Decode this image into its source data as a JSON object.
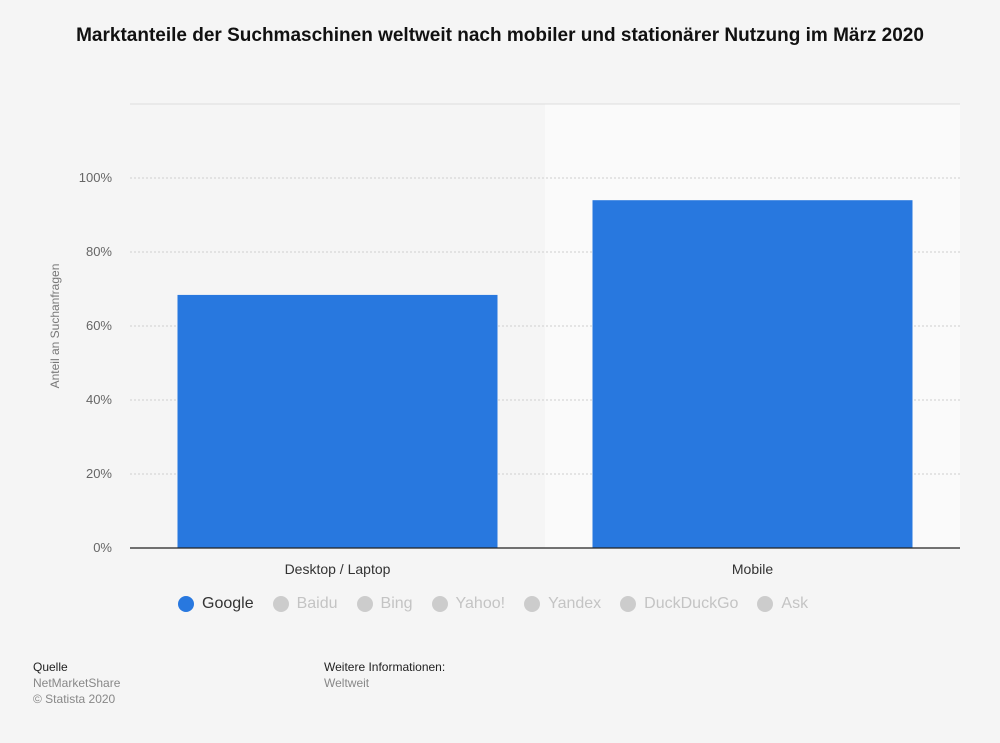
{
  "chart_data": {
    "type": "bar",
    "title": "Marktanteile der Suchmaschinen weltweit nach mobiler und stationärer Nutzung im März 2020",
    "xlabel": "",
    "ylabel": "Anteil an Suchanfragen",
    "categories": [
      "Desktop / Laptop",
      "Mobile"
    ],
    "series": [
      {
        "name": "Google",
        "values": [
          68.4,
          94.0
        ],
        "color": "#2878df",
        "visible": true
      }
    ],
    "legend": [
      {
        "name": "Google",
        "active": true,
        "color": "#2878df"
      },
      {
        "name": "Baidu",
        "active": false,
        "color": "#cccccc"
      },
      {
        "name": "Bing",
        "active": false,
        "color": "#cccccc"
      },
      {
        "name": "Yahoo!",
        "active": false,
        "color": "#cccccc"
      },
      {
        "name": "Yandex",
        "active": false,
        "color": "#cccccc"
      },
      {
        "name": "DuckDuckGo",
        "active": false,
        "color": "#cccccc"
      },
      {
        "name": "Ask",
        "active": false,
        "color": "#cccccc"
      }
    ],
    "yticks": [
      {
        "value": 0,
        "label": "0%"
      },
      {
        "value": 20,
        "label": "20%"
      },
      {
        "value": 40,
        "label": "40%"
      },
      {
        "value": 60,
        "label": "60%"
      },
      {
        "value": 80,
        "label": "80%"
      },
      {
        "value": 100,
        "label": "100%"
      }
    ],
    "ylim": [
      0,
      120
    ],
    "grid": true,
    "legend_position": "bottom-left"
  },
  "source": {
    "label": "Quelle",
    "lines": [
      "NetMarketShare",
      "© Statista 2020"
    ]
  },
  "info": {
    "label": "Weitere Informationen:",
    "lines": [
      "Weltweit"
    ]
  },
  "colors": {
    "bar": "#2878df",
    "inactive": "#cccccc",
    "background": "#f5f5f5",
    "highlight_band": "#fafafa"
  }
}
